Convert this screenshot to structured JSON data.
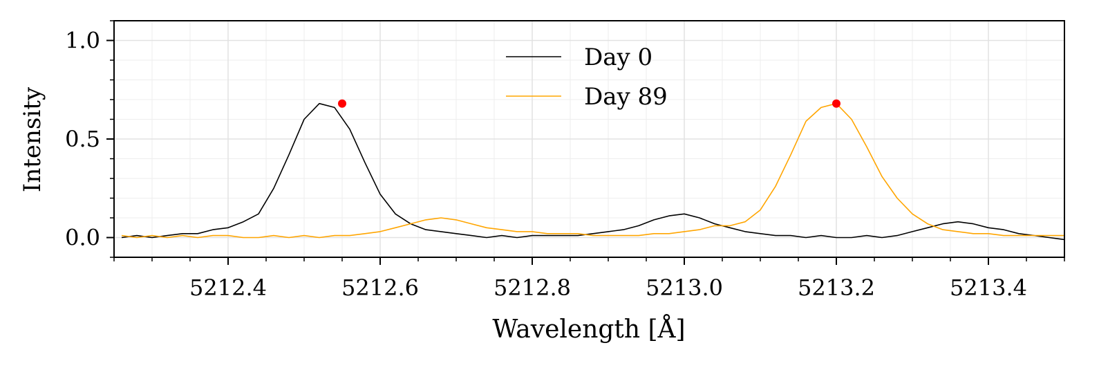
{
  "chart_data": {
    "type": "line",
    "title": "",
    "xlabel": "Wavelength [Å]",
    "ylabel": "Intensity",
    "xlim": [
      5212.25,
      5213.5
    ],
    "ylim": [
      -0.1,
      1.1
    ],
    "xticks": [
      5212.4,
      5212.6,
      5212.8,
      5213.0,
      5213.2,
      5213.4
    ],
    "xtick_labels": [
      "5212.4",
      "5212.6",
      "5212.8",
      "5213.0",
      "5213.2",
      "5213.4"
    ],
    "yticks": [
      0.0,
      0.5,
      1.0
    ],
    "ytick_labels": [
      "0.0",
      "0.5",
      "1.0"
    ],
    "grid": true,
    "legend_position": "top-center",
    "series": [
      {
        "name": "Day 0",
        "color": "#000000",
        "x": [
          5212.26,
          5212.28,
          5212.3,
          5212.32,
          5212.34,
          5212.36,
          5212.38,
          5212.4,
          5212.42,
          5212.44,
          5212.46,
          5212.48,
          5212.5,
          5212.52,
          5212.54,
          5212.56,
          5212.58,
          5212.6,
          5212.62,
          5212.64,
          5212.66,
          5212.68,
          5212.7,
          5212.72,
          5212.74,
          5212.76,
          5212.78,
          5212.8,
          5212.82,
          5212.84,
          5212.86,
          5212.88,
          5212.9,
          5212.92,
          5212.94,
          5212.96,
          5212.98,
          5213.0,
          5213.02,
          5213.04,
          5213.06,
          5213.08,
          5213.1,
          5213.12,
          5213.14,
          5213.16,
          5213.18,
          5213.2,
          5213.22,
          5213.24,
          5213.26,
          5213.28,
          5213.3,
          5213.32,
          5213.34,
          5213.36,
          5213.38,
          5213.4,
          5213.42,
          5213.44,
          5213.46,
          5213.48,
          5213.5
        ],
        "y": [
          0.0,
          0.01,
          0.0,
          0.01,
          0.02,
          0.02,
          0.04,
          0.05,
          0.08,
          0.12,
          0.25,
          0.42,
          0.6,
          0.68,
          0.66,
          0.55,
          0.38,
          0.22,
          0.12,
          0.07,
          0.04,
          0.03,
          0.02,
          0.01,
          0.0,
          0.01,
          0.0,
          0.01,
          0.01,
          0.01,
          0.01,
          0.02,
          0.03,
          0.04,
          0.06,
          0.09,
          0.11,
          0.12,
          0.1,
          0.07,
          0.05,
          0.03,
          0.02,
          0.01,
          0.01,
          0.0,
          0.01,
          0.0,
          0.0,
          0.01,
          0.0,
          0.01,
          0.03,
          0.05,
          0.07,
          0.08,
          0.07,
          0.05,
          0.04,
          0.02,
          0.01,
          0.0,
          -0.01
        ]
      },
      {
        "name": "Day 89",
        "color": "#FFA500",
        "x": [
          5212.26,
          5212.28,
          5212.3,
          5212.32,
          5212.34,
          5212.36,
          5212.38,
          5212.4,
          5212.42,
          5212.44,
          5212.46,
          5212.48,
          5212.5,
          5212.52,
          5212.54,
          5212.56,
          5212.58,
          5212.6,
          5212.62,
          5212.64,
          5212.66,
          5212.68,
          5212.7,
          5212.72,
          5212.74,
          5212.76,
          5212.78,
          5212.8,
          5212.82,
          5212.84,
          5212.86,
          5212.88,
          5212.9,
          5212.92,
          5212.94,
          5212.96,
          5212.98,
          5213.0,
          5213.02,
          5213.04,
          5213.06,
          5213.08,
          5213.1,
          5213.12,
          5213.14,
          5213.16,
          5213.18,
          5213.2,
          5213.22,
          5213.24,
          5213.26,
          5213.28,
          5213.3,
          5213.32,
          5213.34,
          5213.36,
          5213.38,
          5213.4,
          5213.42,
          5213.44,
          5213.46,
          5213.48,
          5213.5
        ],
        "y": [
          0.01,
          0.0,
          0.01,
          0.0,
          0.01,
          0.0,
          0.01,
          0.01,
          0.0,
          0.0,
          0.01,
          0.0,
          0.01,
          0.0,
          0.01,
          0.01,
          0.02,
          0.03,
          0.05,
          0.07,
          0.09,
          0.1,
          0.09,
          0.07,
          0.05,
          0.04,
          0.03,
          0.03,
          0.02,
          0.02,
          0.02,
          0.01,
          0.01,
          0.01,
          0.01,
          0.02,
          0.02,
          0.03,
          0.04,
          0.06,
          0.06,
          0.08,
          0.14,
          0.26,
          0.42,
          0.59,
          0.66,
          0.68,
          0.6,
          0.46,
          0.31,
          0.2,
          0.12,
          0.07,
          0.04,
          0.03,
          0.02,
          0.02,
          0.01,
          0.01,
          0.01,
          0.01,
          0.01
        ]
      }
    ],
    "markers": [
      {
        "x": 5212.55,
        "y": 0.68,
        "color": "#FF0000"
      },
      {
        "x": 5213.2,
        "y": 0.68,
        "color": "#FF0000"
      }
    ]
  }
}
